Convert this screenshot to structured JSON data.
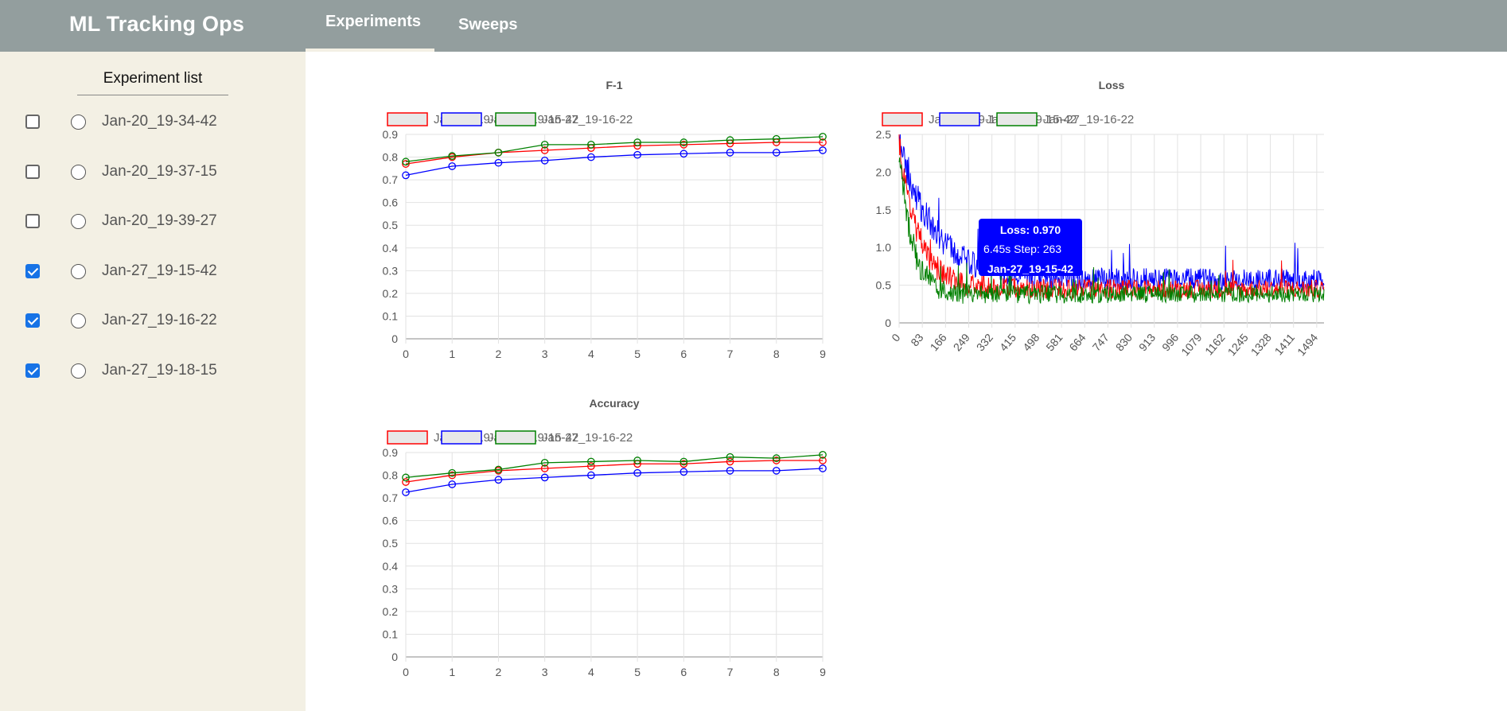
{
  "app": {
    "title": "ML Tracking Ops"
  },
  "nav": {
    "tabs": [
      {
        "label": "Experiments",
        "active": true
      },
      {
        "label": "Sweeps",
        "active": false
      }
    ]
  },
  "sidebar": {
    "title": "Experiment list",
    "experiments": [
      {
        "name": "Jan-20_19-34-42",
        "checked": false
      },
      {
        "name": "Jan-20_19-37-15",
        "checked": false
      },
      {
        "name": "Jan-20_19-39-27",
        "checked": false
      },
      {
        "name": "Jan-27_19-15-42",
        "checked": true
      },
      {
        "name": "Jan-27_19-16-22",
        "checked": true
      },
      {
        "name": "Jan-27_19-18-15",
        "checked": true
      }
    ]
  },
  "colors": {
    "red": "#ff0000",
    "blue": "#0000ff",
    "green": "#008000",
    "accent": "#1773e6",
    "sidebar_bg": "#f3f0e4",
    "header_bg": "#939e9e"
  },
  "tooltip": {
    "title": "Loss: 0.970",
    "line": "6.45s  Step: 263",
    "series": "Jan-27_19-15-42"
  },
  "chart_data": [
    {
      "type": "line",
      "title": "F-1",
      "x": [
        0,
        1,
        2,
        3,
        4,
        5,
        6,
        7,
        8,
        9
      ],
      "ylim": [
        0,
        0.9
      ],
      "yticks": [
        "0",
        "0.1",
        "0.2",
        "0.3",
        "0.4",
        "0.5",
        "0.6",
        "0.7",
        "0.8",
        "0.9"
      ],
      "grid": true,
      "legend": "top",
      "series": [
        {
          "name": "Jan-27_19-18-15",
          "color": "red",
          "values": [
            0.77,
            0.8,
            0.82,
            0.83,
            0.84,
            0.85,
            0.855,
            0.86,
            0.865,
            0.865
          ]
        },
        {
          "name": "Jan-27_19-15-42",
          "color": "blue",
          "values": [
            0.72,
            0.76,
            0.775,
            0.785,
            0.8,
            0.81,
            0.815,
            0.82,
            0.82,
            0.83
          ]
        },
        {
          "name": "Jan-27_19-16-22",
          "color": "green",
          "values": [
            0.78,
            0.805,
            0.82,
            0.855,
            0.855,
            0.865,
            0.865,
            0.875,
            0.88,
            0.89
          ]
        }
      ]
    },
    {
      "type": "line",
      "title": "Loss",
      "x_range": [
        0,
        1520
      ],
      "xticks": [
        "0",
        "83",
        "166",
        "249",
        "332",
        "415",
        "498",
        "581",
        "664",
        "747",
        "830",
        "913",
        "996",
        "1079",
        "1162",
        "1245",
        "1328",
        "1411",
        "1494"
      ],
      "ylim": [
        0,
        2.5
      ],
      "yticks": [
        "0",
        "0.5",
        "1.0",
        "1.5",
        "2.0",
        "2.5"
      ],
      "grid": true,
      "legend": "top",
      "series": [
        {
          "name": "Jan-27_19-18-15",
          "color": "red",
          "start": 2.4,
          "asymptote": 0.45,
          "decay": 70,
          "noise": 0.12
        },
        {
          "name": "Jan-27_19-15-42",
          "color": "blue",
          "start": 2.45,
          "asymptote": 0.58,
          "decay": 120,
          "noise": 0.14
        },
        {
          "name": "Jan-27_19-16-22",
          "color": "green",
          "start": 2.3,
          "asymptote": 0.38,
          "decay": 45,
          "noise": 0.11
        }
      ]
    },
    {
      "type": "line",
      "title": "Accuracy",
      "x": [
        0,
        1,
        2,
        3,
        4,
        5,
        6,
        7,
        8,
        9
      ],
      "ylim": [
        0,
        0.9
      ],
      "yticks": [
        "0",
        "0.1",
        "0.2",
        "0.3",
        "0.4",
        "0.5",
        "0.6",
        "0.7",
        "0.8",
        "0.9"
      ],
      "grid": true,
      "legend": "top",
      "series": [
        {
          "name": "Jan-27_19-18-15",
          "color": "red",
          "values": [
            0.77,
            0.8,
            0.82,
            0.83,
            0.84,
            0.85,
            0.85,
            0.86,
            0.865,
            0.865
          ]
        },
        {
          "name": "Jan-27_19-15-42",
          "color": "blue",
          "values": [
            0.725,
            0.76,
            0.78,
            0.79,
            0.8,
            0.81,
            0.815,
            0.82,
            0.82,
            0.83
          ]
        },
        {
          "name": "Jan-27_19-16-22",
          "color": "green",
          "values": [
            0.79,
            0.81,
            0.825,
            0.855,
            0.86,
            0.865,
            0.86,
            0.88,
            0.875,
            0.89
          ]
        }
      ]
    }
  ]
}
